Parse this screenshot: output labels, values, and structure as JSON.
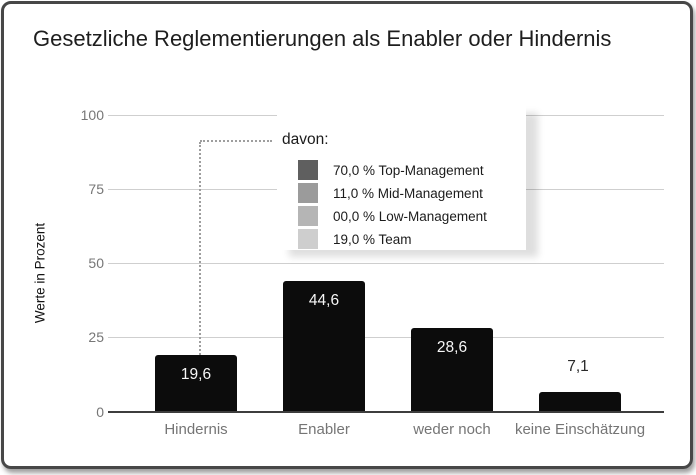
{
  "title": "Gesetzliche Reglementierungen als Enabler oder Hindernis",
  "y_axis": {
    "label": "Werte in Prozent",
    "ticks": [
      "100",
      "75",
      "50",
      "25",
      "0"
    ]
  },
  "bars": [
    {
      "category": "Hindernis",
      "value_label": "19,6"
    },
    {
      "category": "Enabler",
      "value_label": "44,6"
    },
    {
      "category": "weder noch",
      "value_label": "28,6"
    },
    {
      "category": "keine Einschätzung",
      "value_label": "7,1"
    }
  ],
  "legend": {
    "heading": "davon:",
    "items": [
      {
        "label": "70,0 % Top-Management",
        "color": "#5f5f5f"
      },
      {
        "label": "11,0 % Mid-Management",
        "color": "#9b9b9b"
      },
      {
        "label": "00,0 % Low-Management",
        "color": "#b5b5b5"
      },
      {
        "label": "19,0 % Team",
        "color": "#cecece"
      }
    ]
  },
  "colors": {
    "bar": "#0c0c0c",
    "bar_label_light": "#f7f7f7",
    "bar_label_dark": "#2a2a2a",
    "gridline": "#cfcfcf",
    "axis_line": "#3d3d3d",
    "tick_text": "#777777",
    "title_text": "#1e1e1e",
    "frame_border": "#474747",
    "dotted_connector": "#9e9e9e"
  },
  "chart_data": {
    "type": "bar",
    "title": "Gesetzliche Reglementierungen als Enabler oder Hindernis",
    "categories": [
      "Hindernis",
      "Enabler",
      "weder noch",
      "keine Einschätzung"
    ],
    "values": [
      19.6,
      44.6,
      28.6,
      7.1
    ],
    "value_labels": [
      "19,6",
      "44,6",
      "28,6",
      "7,1"
    ],
    "xlabel": "",
    "ylabel": "Werte in Prozent",
    "ylim": [
      0,
      100
    ],
    "yticks": [
      0,
      25,
      50,
      75,
      100
    ],
    "grid": true,
    "bar_color": "#0c0c0c",
    "annotation": {
      "heading": "davon:",
      "applies_to": "Hindernis",
      "connector": "dotted line from Hindernis bar to legend box",
      "breakdown": [
        {
          "label": "Top-Management",
          "value": 70.0,
          "value_label": "70,0 %",
          "swatch_color": "#5f5f5f"
        },
        {
          "label": "Mid-Management",
          "value": 11.0,
          "value_label": "11,0 %",
          "swatch_color": "#9b9b9b"
        },
        {
          "label": "Low-Management",
          "value": 0.0,
          "value_label": "00,0 %",
          "swatch_color": "#b5b5b5"
        },
        {
          "label": "Team",
          "value": 19.0,
          "value_label": "19,0 %",
          "swatch_color": "#cecece"
        }
      ]
    }
  }
}
